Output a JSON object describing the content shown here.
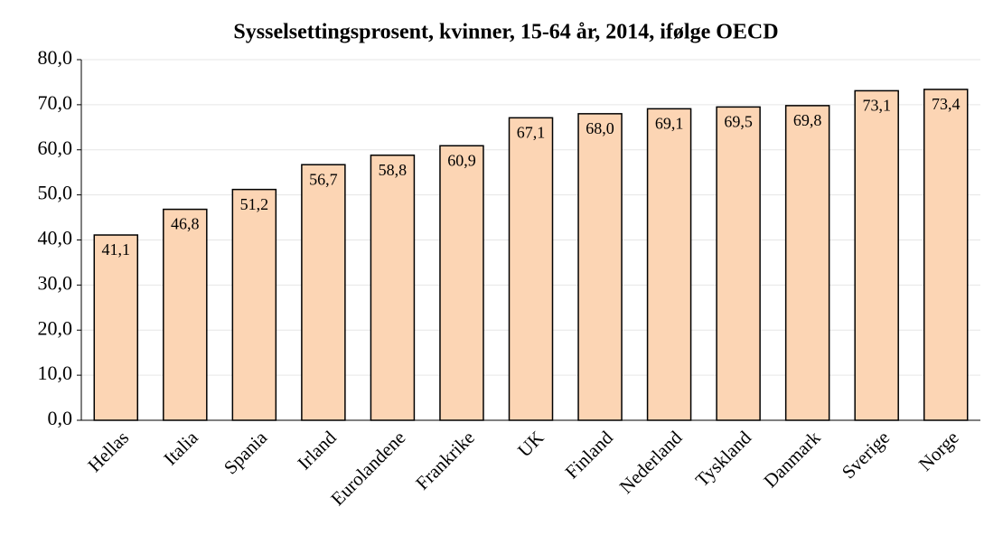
{
  "chart_data": {
    "type": "bar",
    "title": "Sysselsettingsprosent, kvinner, 15-64 år, 2014, ifølge OECD",
    "categories": [
      "Hellas",
      "Italia",
      "Spania",
      "Irland",
      "Eurolandene",
      "Frankrike",
      "UK",
      "Finland",
      "Nederland",
      "Tyskland",
      "Danmark",
      "Sverige",
      "Norge"
    ],
    "values": [
      41.1,
      46.8,
      51.2,
      56.7,
      58.8,
      60.9,
      67.1,
      68.0,
      69.1,
      69.5,
      69.8,
      73.1,
      73.4
    ],
    "value_labels": [
      "41,1",
      "46,8",
      "51,2",
      "56,7",
      "58,8",
      "60,9",
      "67,1",
      "68,0",
      "69,1",
      "69,5",
      "69,8",
      "73,1",
      "73,4"
    ],
    "color": "#fcd5b4",
    "ylim": [
      0,
      80
    ],
    "yticks": [
      {
        "value": 0,
        "label": "0,0"
      },
      {
        "value": 10,
        "label": "10,0"
      },
      {
        "value": 20,
        "label": "20,0"
      },
      {
        "value": 30,
        "label": "30,0"
      },
      {
        "value": 40,
        "label": "40,0"
      },
      {
        "value": 50,
        "label": "50,0"
      },
      {
        "value": 60,
        "label": "60,0"
      },
      {
        "value": 70,
        "label": "70,0"
      },
      {
        "value": 80,
        "label": "80,0"
      }
    ],
    "grid": true
  }
}
